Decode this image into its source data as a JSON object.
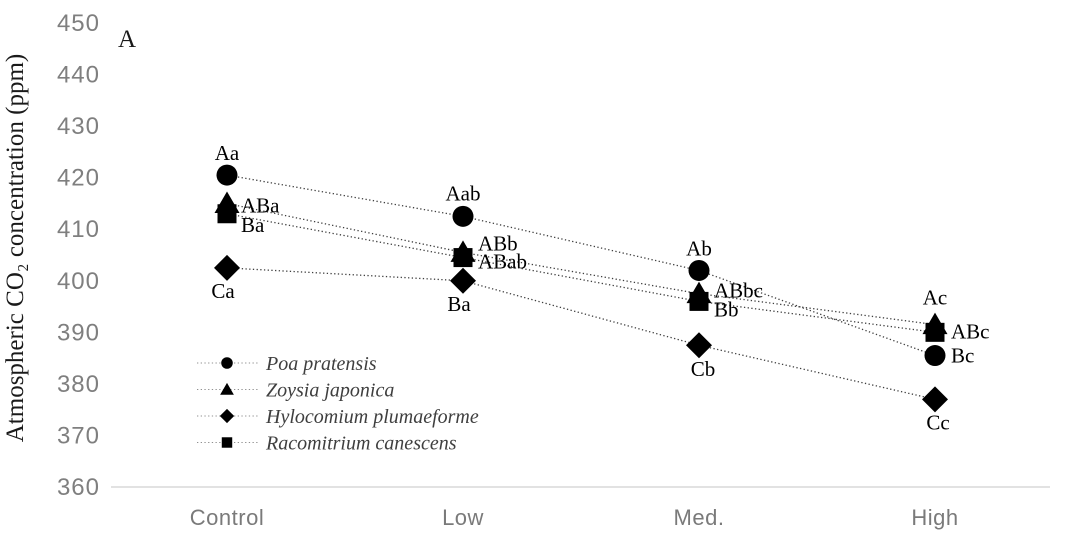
{
  "panel_label": "A",
  "y_axis": {
    "title": "Atmospheric CO₂ concentration (ppm)",
    "ticks": [
      "450",
      "440",
      "430",
      "420",
      "410",
      "400",
      "390",
      "380",
      "370",
      "360"
    ]
  },
  "x_axis": {
    "categories": [
      "Control",
      "Low",
      "Med.",
      "High"
    ]
  },
  "chart_data": {
    "type": "line",
    "title": "",
    "panel": "A",
    "xlabel": "",
    "ylabel": "Atmospheric CO₂ concentration (ppm)",
    "ylim": [
      360,
      450
    ],
    "ytick_step": 10,
    "grid": false,
    "line_style": "dotted",
    "legend_position": "inside-bottom-left",
    "categories": [
      "Control",
      "Low",
      "Med.",
      "High"
    ],
    "series": [
      {
        "name": "Poa pratensis",
        "marker": "circle",
        "values": [
          420.5,
          412.5,
          402.0,
          385.5
        ],
        "point_labels": [
          "Aa",
          "Aab",
          "Ab",
          "Bc"
        ]
      },
      {
        "name": "Zoysia japonica",
        "marker": "triangle",
        "values": [
          415.0,
          405.5,
          397.5,
          391.5
        ],
        "point_labels": [
          "ABa",
          "ABb",
          "ABbc",
          "Ac"
        ]
      },
      {
        "name": "Hylocomium plumaeforme",
        "marker": "diamond",
        "values": [
          402.5,
          400.0,
          387.5,
          377.0
        ],
        "point_labels": [
          "Ca",
          "Ba",
          "Cb",
          "Cc"
        ]
      },
      {
        "name": "Racomitrium canescens",
        "marker": "square",
        "values": [
          413.0,
          404.5,
          396.0,
          390.0
        ],
        "point_labels": [
          "Ba",
          "ABab",
          "Bb",
          "ABc"
        ]
      }
    ]
  },
  "colors": {
    "marker": "#000000",
    "series_line": "#3f3f3f",
    "axis_line": "#d9d9d9",
    "tick_label": "#7f7f7f",
    "point_label": "#000000",
    "legend_text": "#3f3f3f",
    "legend_line": "#909090",
    "background": "#ffffff"
  }
}
